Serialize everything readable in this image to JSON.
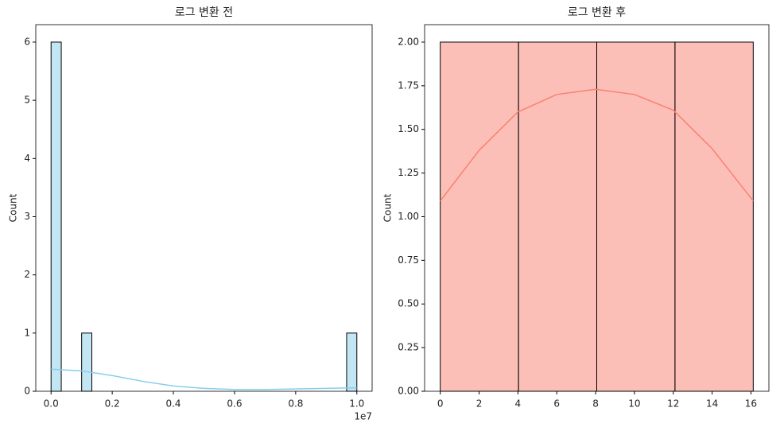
{
  "chart_data": [
    {
      "type": "histogram",
      "title": "로그 변환 전",
      "ylabel": "Count",
      "x_offset_label": "1e7",
      "color": "#87ceeb",
      "bins": [
        0,
        333333.33,
        666666.67,
        1000000,
        1333333.33,
        1666666.67,
        2000000,
        2333333.33,
        2666666.67,
        3000000,
        3333333.33,
        3666666.67,
        4000000,
        4333333.33,
        4666666.67,
        5000000,
        5333333.33,
        5666666.67,
        6000000,
        6333333.33,
        6666666.67,
        7000000,
        7333333.33,
        7666666.67,
        8000000,
        8333333.33,
        8666666.67,
        9000000,
        9333333.33,
        9666666.67,
        10000000
      ],
      "counts": [
        6,
        0,
        0,
        1,
        0,
        0,
        0,
        0,
        0,
        0,
        0,
        0,
        0,
        0,
        0,
        0,
        0,
        0,
        0,
        0,
        0,
        0,
        0,
        0,
        0,
        0,
        0,
        0,
        0,
        1
      ],
      "kde_x": [
        0,
        1000000,
        2000000,
        3000000,
        4000000,
        5000000,
        6000000,
        7000000,
        8000000,
        9000000,
        10000000
      ],
      "kde_y": [
        0.38,
        0.35,
        0.27,
        0.17,
        0.09,
        0.05,
        0.03,
        0.03,
        0.04,
        0.05,
        0.06
      ],
      "xlim": [
        -500000,
        10500000
      ],
      "ylim": [
        0,
        6.3
      ],
      "xticks": [
        {
          "value": 0,
          "label": "0.0"
        },
        {
          "value": 2000000,
          "label": "0.2"
        },
        {
          "value": 4000000,
          "label": "0.4"
        },
        {
          "value": 6000000,
          "label": "0.6"
        },
        {
          "value": 8000000,
          "label": "0.8"
        },
        {
          "value": 10000000,
          "label": "1.0"
        }
      ],
      "yticks": [
        0,
        1,
        2,
        3,
        4,
        5,
        6
      ]
    },
    {
      "type": "histogram",
      "title": "로그 변환 후",
      "ylabel": "Count",
      "color": "#fa8072",
      "bins": [
        0,
        4.0295,
        8.059,
        12.0886,
        16.1181
      ],
      "counts": [
        2,
        2,
        2,
        2
      ],
      "kde_x": [
        0,
        2,
        4,
        6,
        8,
        10,
        12,
        14,
        16.1181
      ],
      "kde_y": [
        1.09,
        1.38,
        1.6,
        1.7,
        1.73,
        1.7,
        1.61,
        1.39,
        1.09
      ],
      "xlim": [
        -0.806,
        16.924
      ],
      "ylim": [
        0,
        2.1
      ],
      "xticks": [
        0,
        2,
        4,
        6,
        8,
        10,
        12,
        14,
        16
      ],
      "yticks": [
        {
          "value": 0,
          "label": "0.00"
        },
        {
          "value": 0.25,
          "label": "0.25"
        },
        {
          "value": 0.5,
          "label": "0.50"
        },
        {
          "value": 0.75,
          "label": "0.75"
        },
        {
          "value": 1,
          "label": "1.00"
        },
        {
          "value": 1.25,
          "label": "1.25"
        },
        {
          "value": 1.5,
          "label": "1.50"
        },
        {
          "value": 1.75,
          "label": "1.75"
        },
        {
          "value": 2,
          "label": "2.00"
        }
      ]
    }
  ]
}
